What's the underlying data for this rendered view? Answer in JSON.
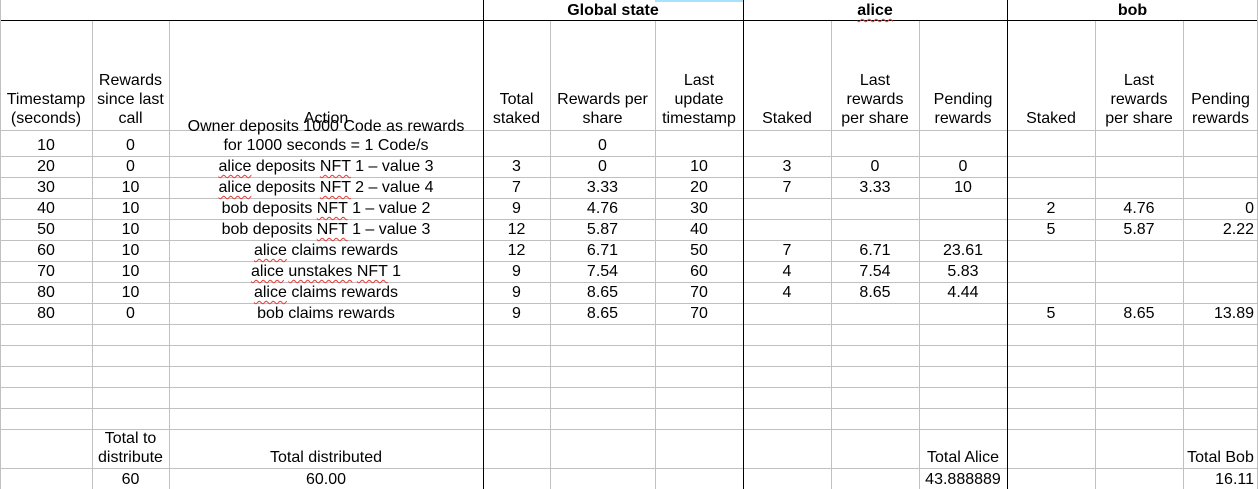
{
  "groups": {
    "global": "Global state",
    "alice": "alice",
    "bob": "bob"
  },
  "headers": {
    "timestamp": [
      "Timestamp",
      "(seconds)"
    ],
    "rewards_since": [
      "Rewards",
      "since last",
      "call"
    ],
    "action": "Action",
    "total_staked": [
      "Total",
      "staked"
    ],
    "rewards_per_share": [
      "Rewards per",
      "share"
    ],
    "last_update": [
      "Last",
      "update",
      "timestamp"
    ],
    "a_staked": "Staked",
    "a_last": [
      "Last",
      "rewards",
      "per share"
    ],
    "a_pending": [
      "Pending",
      "rewards"
    ],
    "b_staked": "Staked",
    "b_last": [
      "Last",
      "rewards",
      "per share"
    ],
    "b_pending": [
      "Pending",
      "rewards"
    ]
  },
  "rows": [
    {
      "ts": "10",
      "rs": "0",
      "action": [
        "Owner deposits 1000 Code as rewards",
        "for 1000 seconds = 1 Code/s"
      ],
      "total": "",
      "rps": "0",
      "last": "",
      "a_st": "",
      "a_lr": "",
      "a_pr": "",
      "b_st": "",
      "b_lr": "",
      "b_pr": ""
    },
    {
      "ts": "20",
      "rs": "0",
      "action": [
        "alice deposits NFT 1 – value 3"
      ],
      "total": "3",
      "rps": "0",
      "last": "10",
      "a_st": "3",
      "a_lr": "0",
      "a_pr": "0",
      "b_st": "",
      "b_lr": "",
      "b_pr": ""
    },
    {
      "ts": "30",
      "rs": "10",
      "action": [
        "alice deposits NFT 2 – value 4"
      ],
      "total": "7",
      "rps": "3.33",
      "last": "20",
      "a_st": "7",
      "a_lr": "3.33",
      "a_pr": "10",
      "b_st": "",
      "b_lr": "",
      "b_pr": ""
    },
    {
      "ts": "40",
      "rs": "10",
      "action": [
        "bob deposits NFT 1 – value 2"
      ],
      "total": "9",
      "rps": "4.76",
      "last": "30",
      "a_st": "",
      "a_lr": "",
      "a_pr": "",
      "b_st": "2",
      "b_lr": "4.76",
      "b_pr": "0"
    },
    {
      "ts": "50",
      "rs": "10",
      "action": [
        "bob deposits NFT 1 – value 3"
      ],
      "total": "12",
      "rps": "5.87",
      "last": "40",
      "a_st": "",
      "a_lr": "",
      "a_pr": "",
      "b_st": "5",
      "b_lr": "5.87",
      "b_pr": "2.22"
    },
    {
      "ts": "60",
      "rs": "10",
      "action": [
        "alice claims rewards"
      ],
      "total": "12",
      "rps": "6.71",
      "last": "50",
      "a_st": "7",
      "a_lr": "6.71",
      "a_pr": "23.61",
      "b_st": "",
      "b_lr": "",
      "b_pr": ""
    },
    {
      "ts": "70",
      "rs": "10",
      "action": [
        "alice unstakes NFT 1"
      ],
      "total": "9",
      "rps": "7.54",
      "last": "60",
      "a_st": "4",
      "a_lr": "7.54",
      "a_pr": "5.83",
      "b_st": "",
      "b_lr": "",
      "b_pr": ""
    },
    {
      "ts": "80",
      "rs": "10",
      "action": [
        "alice claims rewards"
      ],
      "total": "9",
      "rps": "8.65",
      "last": "70",
      "a_st": "4",
      "a_lr": "8.65",
      "a_pr": "4.44",
      "b_st": "",
      "b_lr": "",
      "b_pr": ""
    },
    {
      "ts": "80",
      "rs": "0",
      "action": [
        "bob claims rewards"
      ],
      "total": "9",
      "rps": "8.65",
      "last": "70",
      "a_st": "",
      "a_lr": "",
      "a_pr": "",
      "b_st": "5",
      "b_lr": "8.65",
      "b_pr": "13.89"
    }
  ],
  "totals": {
    "to_distribute_label": [
      "Total to",
      "distribute"
    ],
    "distributed_label": "Total distributed",
    "alice_label": "Total Alice",
    "bob_label": "Total Bob",
    "to_distribute_value": "60",
    "distributed_value": "60.00",
    "alice_value": "43.888889",
    "bob_value": "16.11"
  },
  "colors": {
    "grid": "#c0c0c0",
    "border": "#000000",
    "spellcheck": "#e53935",
    "selection": "#4fc3f7"
  }
}
